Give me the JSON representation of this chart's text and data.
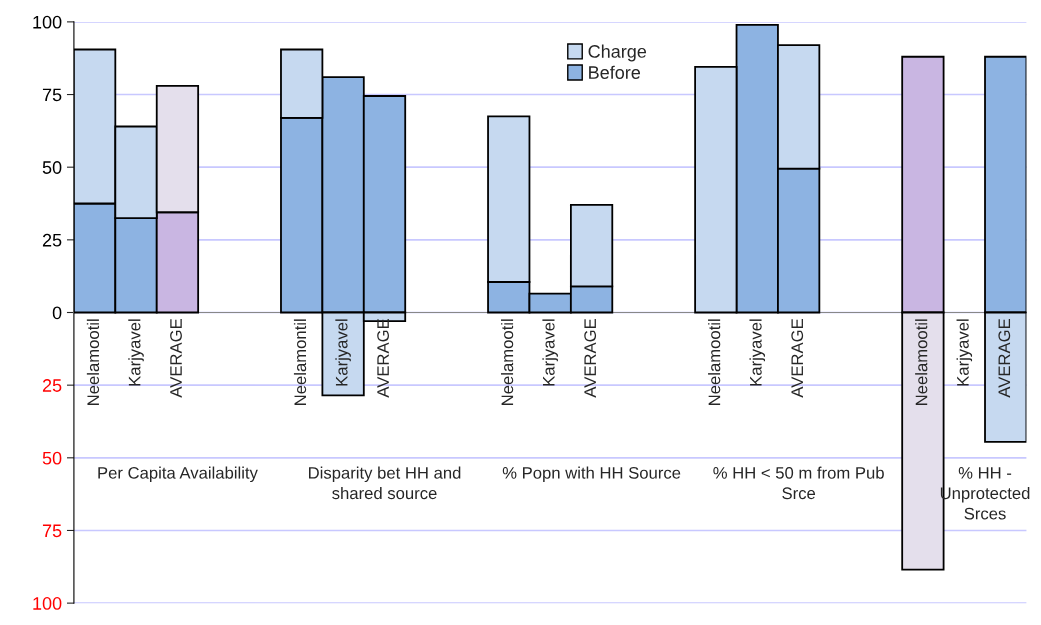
{
  "chart_data": {
    "type": "bar",
    "stacked": true,
    "categories": [
      "Neelamootil",
      "Karjyavel",
      "AVERAGE",
      null,
      null,
      "Neelamontil",
      "Karjyavel",
      "AVERAGE",
      null,
      null,
      "Neelamootil",
      "Karjyavel",
      "AVERAGE",
      null,
      null,
      "Neelamootil",
      "Karjyavel",
      "AVERAGE",
      null,
      null,
      "Neelamootil",
      "Karjyavel",
      "AVERAGE"
    ],
    "series": [
      {
        "name": "Before",
        "color": "#8db3e2",
        "colors": [
          "#8db3e2",
          "#8db3e2",
          "#c9b6e2",
          null,
          null,
          "#8db3e2",
          "#8db3e2",
          "#8db3e2",
          null,
          null,
          "#8db3e2",
          "#8db3e2",
          "#8db3e2",
          null,
          null,
          "#8db3e2",
          "#8db3e2",
          "#8db3e2",
          null,
          null,
          "#c9b6e2",
          null,
          "#8db3e2"
        ],
        "values": [
          37.5,
          32.5,
          34.5,
          null,
          null,
          67,
          81,
          74.5,
          null,
          null,
          10.5,
          6.5,
          9,
          null,
          null,
          null,
          99,
          49.5,
          null,
          null,
          88,
          null,
          88
        ]
      },
      {
        "name": "Charge",
        "color": "#c6d9f0",
        "colors": [
          "#c6d9f0",
          "#c6d9f0",
          "#e4dfec",
          null,
          null,
          "#c6d9f0",
          "#c6d9f0",
          "#c6d9f0",
          null,
          null,
          "#c6d9f0",
          "#c6d9f0",
          "#c6d9f0",
          null,
          null,
          "#c6d9f0",
          "#c6d9f0",
          "#c6d9f0",
          null,
          null,
          "#e4dfec",
          null,
          "#c6d9f0"
        ],
        "values": [
          53,
          31.5,
          43.5,
          null,
          null,
          23.5,
          -28.5,
          -3,
          null,
          null,
          57,
          null,
          28,
          null,
          null,
          84.5,
          null,
          42.5,
          null,
          null,
          -88.5,
          null,
          -44.5
        ]
      }
    ],
    "annotations": [
      "Per Capita Availability",
      "Disparity bet HH and shared source",
      "% Popn with HH Source",
      "% HH < 50 m from Pub Srce",
      "% HH - Unprotected Srces"
    ],
    "ylim": [
      -100,
      100
    ],
    "yticks": [
      {
        "value": -100,
        "label": "100"
      },
      {
        "value": -75,
        "label": "75"
      },
      {
        "value": -50,
        "label": "50"
      },
      {
        "value": -25,
        "label": "25"
      },
      0,
      25,
      50,
      75,
      100
    ],
    "grid": "y",
    "legend": "top"
  }
}
